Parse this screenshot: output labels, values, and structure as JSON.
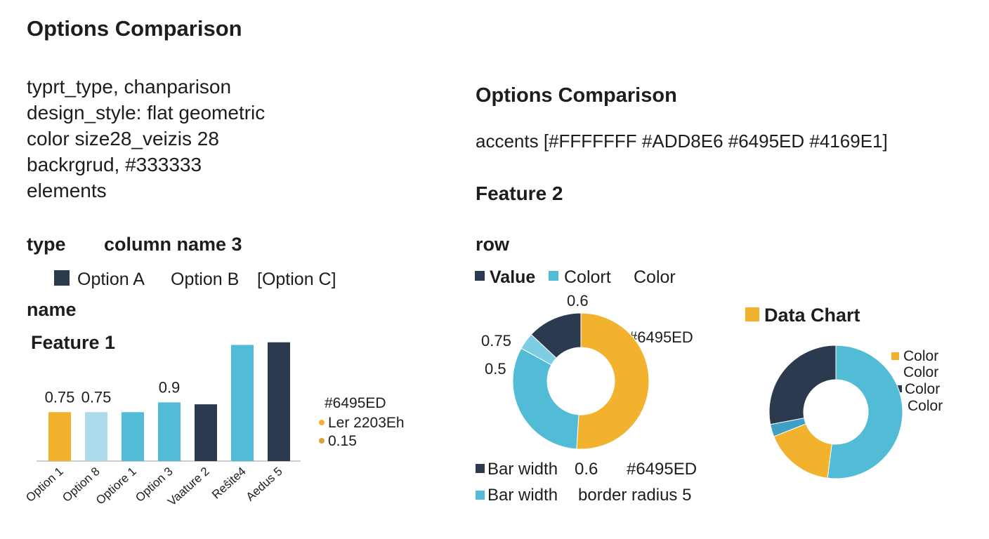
{
  "header": {
    "title": "Options Comparison"
  },
  "spec": {
    "lines": [
      "typrt_type, chanparison",
      "design_style: flat geometric",
      "color size28_veizis 28",
      "backrgrud, #333333",
      "elements"
    ]
  },
  "left": {
    "type_label": "type",
    "column_label": "column name 3",
    "options": [
      "Option A",
      "Option B",
      "[Option C]"
    ],
    "name_label": "name",
    "feature_label": "Feature 1"
  },
  "bar_chart": {
    "type": "bar",
    "categories": [
      "Option 1",
      "Option 8",
      "Optiore 1",
      "Option 3",
      "Vaature 2",
      "Reŝite4",
      "Aedus 5"
    ],
    "values": [
      0.75,
      0.75,
      0.75,
      0.9,
      0.87,
      1.78,
      1.82
    ],
    "value_labels": [
      "0.75",
      "0.75",
      null,
      "0.9",
      null,
      null,
      null
    ],
    "colors": [
      "#F2B22E",
      "#ADDAEA",
      "#52BCD6",
      "#52BCD6",
      "#2B3A4E",
      "#52BCD6",
      "#2B3A4E"
    ],
    "notes": [
      "#6495ED",
      "Ler 2203Eh",
      "0.15"
    ]
  },
  "right": {
    "title": "Options Comparison",
    "accents": "accents [#FFFFFFF  #ADD8E6  #6495ED  #4169E1]",
    "feature_label": "Feature 2",
    "row_label": "row"
  },
  "donut_1": {
    "type": "donut",
    "legend": [
      "Value",
      "Colort",
      "Color"
    ],
    "values": [
      51,
      32,
      4,
      13
    ],
    "colors": [
      "#F2B22E",
      "#52BCD6",
      "#7FCDE3",
      "#2B3A4E"
    ],
    "annotations": [
      "0.6",
      "0.75",
      "0.5",
      "#6495ED"
    ],
    "notes": [
      [
        "Bar width",
        "0.6",
        "#6495ED"
      ],
      [
        "Bar width",
        "border radius 5"
      ]
    ]
  },
  "donut_2": {
    "type": "donut",
    "title": "Data Chart",
    "legend": [
      "Color",
      "Color",
      "Color",
      "Color"
    ],
    "values": [
      52,
      17,
      3,
      28
    ],
    "colors": [
      "#52BCD6",
      "#F2B22E",
      "#3F9FC4",
      "#2B3A4E"
    ]
  }
}
